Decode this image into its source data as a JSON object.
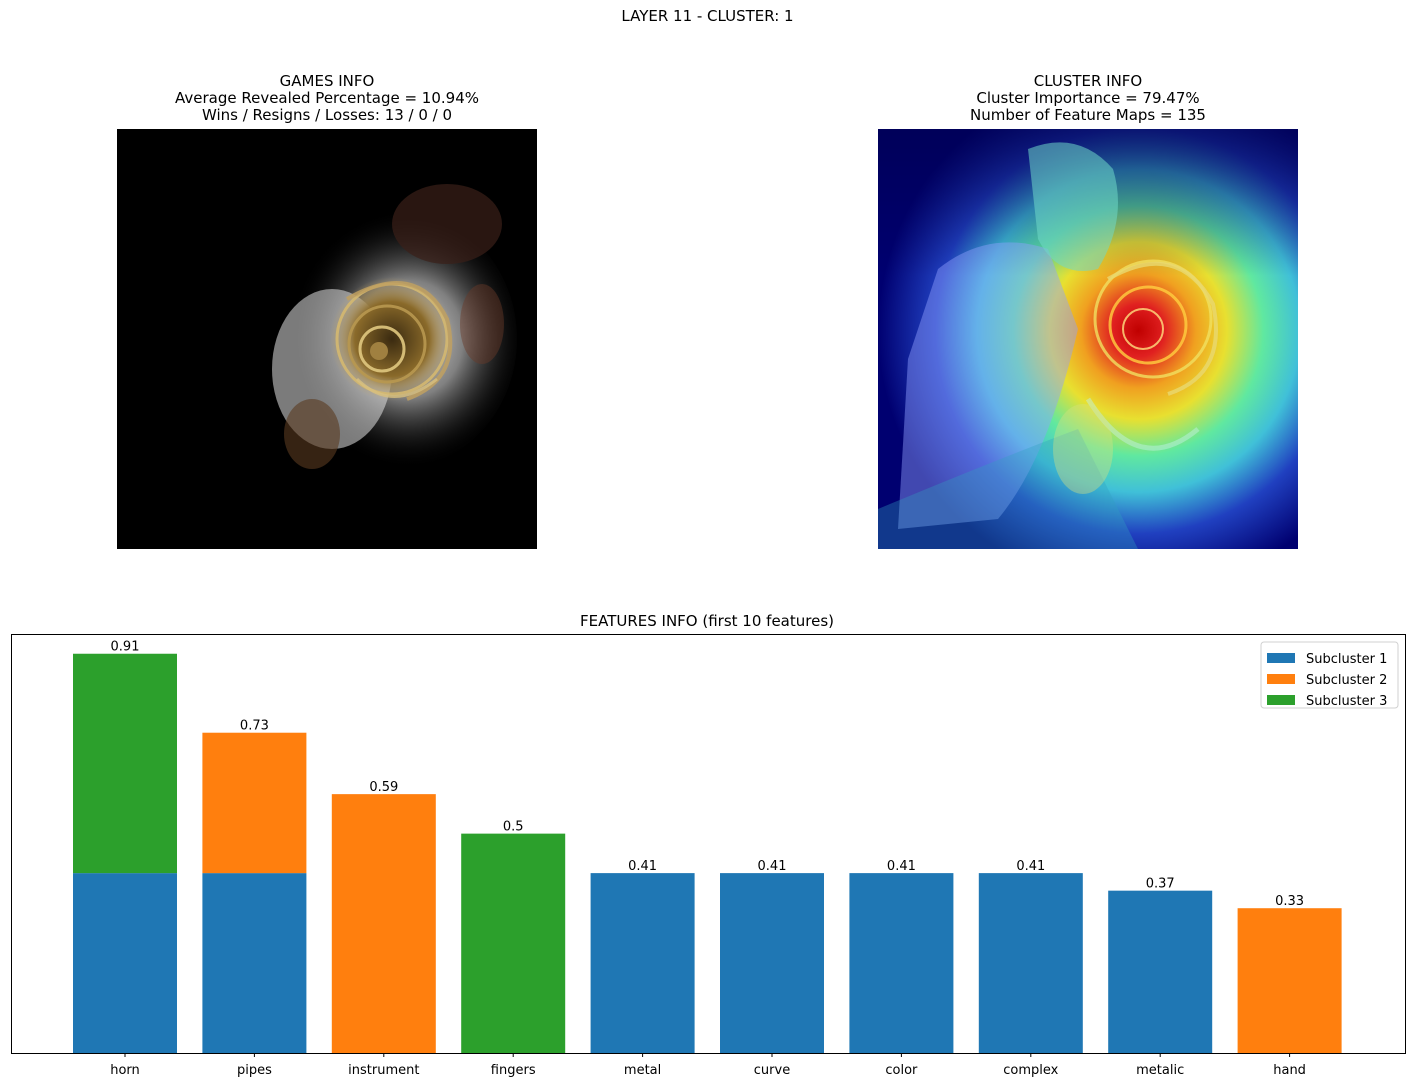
{
  "suptitle": "LAYER 11 - CLUSTER: 1",
  "games_info": {
    "title": "GAMES INFO",
    "line1": "Average Revealed Percentage = 10.94%",
    "line2": "Wins / Resigns / Losses: 13 / 0 / 0"
  },
  "cluster_info": {
    "title": "CLUSTER INFO",
    "line1": "Cluster Importance = 79.47%",
    "line2": "Number of Feature Maps = 135"
  },
  "chart_data": {
    "type": "bar",
    "stacked": true,
    "title": "FEATURES INFO (first 10 features)",
    "categories": [
      "horn",
      "pipes",
      "instrument",
      "fingers",
      "metal",
      "curve",
      "color",
      "complex",
      "metalic",
      "hand"
    ],
    "series": [
      {
        "name": "Subcluster 1",
        "color": "#1f77b4",
        "values": [
          0.41,
          0.41,
          0,
          0,
          0.41,
          0.41,
          0.41,
          0.41,
          0.37,
          0
        ]
      },
      {
        "name": "Subcluster 2",
        "color": "#ff7f0e",
        "values": [
          0,
          0.32,
          0.59,
          0,
          0,
          0,
          0,
          0,
          0,
          0.33
        ]
      },
      {
        "name": "Subcluster 3",
        "color": "#2ca02c",
        "values": [
          0.5,
          0,
          0,
          0.5,
          0,
          0,
          0,
          0,
          0,
          0
        ]
      }
    ],
    "totals": [
      "0.91",
      "0.73",
      "0.59",
      "0.5",
      "0.41",
      "0.41",
      "0.41",
      "0.41",
      "0.37",
      "0.33"
    ],
    "ylim": [
      0,
      0.955
    ],
    "yticks_visible": false,
    "legend_position": "upper right"
  }
}
